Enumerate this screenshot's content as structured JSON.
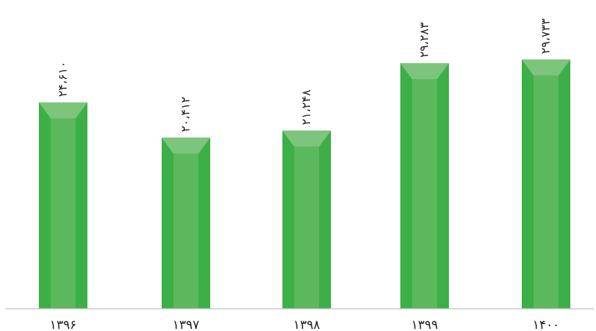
{
  "chart_data": {
    "type": "bar",
    "title": "",
    "xlabel": "",
    "ylabel": "",
    "categories": [
      "۱۳۹۶",
      "۱۳۹۷",
      "۱۳۹۸",
      "۱۳۹۹",
      "۱۴۰۰"
    ],
    "values": [
      24610,
      20412,
      21248,
      29283,
      29733
    ],
    "value_labels": [
      "۲۴،۶۱۰",
      "۲۰،۴۱۲",
      "۲۱،۲۴۸",
      "۲۹،۲۸۳",
      "۲۹،۷۳۳"
    ],
    "ylim": [
      0,
      36000
    ],
    "grid": false,
    "legend": "none",
    "data_label_orientation": "rotated-vertical",
    "colors": {
      "bar_front": "#5cb85c",
      "bar_side": "#3daf47",
      "bar_top": "#7dc57d",
      "axis": "#c8c8c8",
      "text": "#222222"
    }
  }
}
